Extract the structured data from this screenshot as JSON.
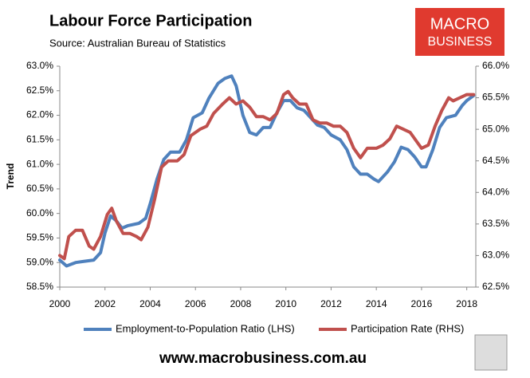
{
  "chart_data": {
    "type": "line",
    "title": "Labour Force Participation",
    "subtitle": "Source: Australian Bureau of Statistics",
    "y_label": "Trend",
    "logo": [
      "MACRO",
      "BUSINESS"
    ],
    "footer": "www.macrobusiness.com.au",
    "xlim": [
      2000,
      2018.4
    ],
    "xticks": [
      2000,
      2002,
      2004,
      2006,
      2008,
      2010,
      2012,
      2014,
      2016,
      2018
    ],
    "ylim": [
      58.5,
      63.0
    ],
    "yticks": [
      {
        "value": 58.5,
        "label": "58.5%"
      },
      {
        "value": 59.0,
        "label": "59.0%"
      },
      {
        "value": 59.5,
        "label": "59.5%"
      },
      {
        "value": 60.0,
        "label": "60.0%"
      },
      {
        "value": 60.5,
        "label": "60.5%"
      },
      {
        "value": 61.0,
        "label": "61.0%"
      },
      {
        "value": 61.5,
        "label": "61.5%"
      },
      {
        "value": 62.0,
        "label": "62.0%"
      },
      {
        "value": 62.5,
        "label": "62.5%"
      },
      {
        "value": 63.0,
        "label": "63.0%"
      }
    ],
    "y2lim": [
      62.5,
      66.0
    ],
    "y2ticks": [
      {
        "value": 62.5,
        "label": "62.5%"
      },
      {
        "value": 63.0,
        "label": "63.0%"
      },
      {
        "value": 63.5,
        "label": "63.5%"
      },
      {
        "value": 64.0,
        "label": "64.0%"
      },
      {
        "value": 64.5,
        "label": "64.5%"
      },
      {
        "value": 65.0,
        "label": "65.0%"
      },
      {
        "value": 65.5,
        "label": "65.5%"
      },
      {
        "value": 66.0,
        "label": "66.0%"
      }
    ],
    "grid": false,
    "legend": "bottom",
    "series": [
      {
        "name": "Employment-to-Population Ratio (LHS)",
        "color": "#4f81bd",
        "axis": "y",
        "x": [
          2000.0,
          2000.3,
          2000.7,
          2001.0,
          2001.5,
          2001.8,
          2002.0,
          2002.25,
          2002.5,
          2002.75,
          2003.0,
          2003.5,
          2003.8,
          2004.0,
          2004.3,
          2004.6,
          2004.9,
          2005.3,
          2005.6,
          2005.9,
          2006.3,
          2006.6,
          2007.0,
          2007.3,
          2007.6,
          2007.8,
          2008.1,
          2008.4,
          2008.7,
          2009.0,
          2009.3,
          2009.6,
          2009.9,
          2010.2,
          2010.5,
          2010.8,
          2011.1,
          2011.4,
          2011.7,
          2012.0,
          2012.4,
          2012.7,
          2013.0,
          2013.3,
          2013.6,
          2013.9,
          2014.1,
          2014.5,
          2014.8,
          2015.1,
          2015.4,
          2015.7,
          2016.0,
          2016.2,
          2016.5,
          2016.8,
          2017.1,
          2017.5,
          2017.8,
          2018.0,
          2018.3
        ],
        "values": [
          59.05,
          58.93,
          59.0,
          59.02,
          59.05,
          59.2,
          59.6,
          59.95,
          59.85,
          59.7,
          59.75,
          59.8,
          59.9,
          60.2,
          60.7,
          61.1,
          61.25,
          61.25,
          61.5,
          61.95,
          62.05,
          62.35,
          62.65,
          62.75,
          62.8,
          62.6,
          62.0,
          61.65,
          61.6,
          61.75,
          61.75,
          62.05,
          62.3,
          62.3,
          62.15,
          62.1,
          61.95,
          61.8,
          61.75,
          61.6,
          61.5,
          61.3,
          60.95,
          60.8,
          60.8,
          60.7,
          60.65,
          60.85,
          61.05,
          61.35,
          61.3,
          61.15,
          60.95,
          60.95,
          61.3,
          61.75,
          61.95,
          62.0,
          62.2,
          62.3,
          62.4
        ]
      },
      {
        "name": "Participation Rate (RHS)",
        "color": "#c0504d",
        "axis": "y2",
        "x": [
          2000.0,
          2000.2,
          2000.4,
          2000.7,
          2001.0,
          2001.3,
          2001.5,
          2001.8,
          2002.1,
          2002.3,
          2002.5,
          2002.8,
          2003.1,
          2003.4,
          2003.6,
          2003.9,
          2004.2,
          2004.5,
          2004.8,
          2005.2,
          2005.5,
          2005.8,
          2006.2,
          2006.5,
          2006.8,
          2007.2,
          2007.5,
          2007.8,
          2008.1,
          2008.4,
          2008.7,
          2009.0,
          2009.3,
          2009.6,
          2009.9,
          2010.1,
          2010.3,
          2010.6,
          2010.9,
          2011.2,
          2011.5,
          2011.8,
          2012.1,
          2012.4,
          2012.7,
          2013.0,
          2013.3,
          2013.6,
          2014.0,
          2014.3,
          2014.6,
          2014.9,
          2015.2,
          2015.5,
          2015.8,
          2016.0,
          2016.3,
          2016.6,
          2016.9,
          2017.2,
          2017.4,
          2017.7,
          2018.0,
          2018.3
        ],
        "values": [
          63.0,
          62.95,
          63.3,
          63.4,
          63.4,
          63.15,
          63.1,
          63.3,
          63.65,
          63.75,
          63.55,
          63.35,
          63.35,
          63.3,
          63.25,
          63.45,
          63.9,
          64.4,
          64.5,
          64.5,
          64.6,
          64.9,
          65.0,
          65.05,
          65.25,
          65.4,
          65.5,
          65.4,
          65.45,
          65.35,
          65.2,
          65.2,
          65.15,
          65.25,
          65.55,
          65.6,
          65.5,
          65.4,
          65.4,
          65.15,
          65.1,
          65.1,
          65.05,
          65.05,
          64.95,
          64.7,
          64.55,
          64.7,
          64.7,
          64.75,
          64.85,
          65.05,
          65.0,
          64.95,
          64.8,
          64.7,
          64.75,
          65.05,
          65.3,
          65.5,
          65.45,
          65.5,
          65.55,
          65.55
        ]
      }
    ]
  }
}
